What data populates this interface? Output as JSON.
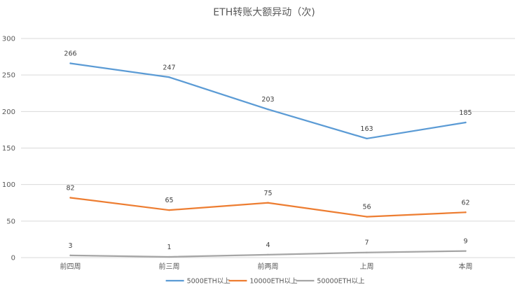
{
  "chart_data": {
    "type": "line",
    "title": "ETH转账大额异动（次)",
    "xlabel": "",
    "ylabel": "",
    "categories": [
      "前四周",
      "前三周",
      "前两周",
      "上周",
      "本周"
    ],
    "ylim": [
      0,
      300
    ],
    "yticks": [
      0,
      50,
      100,
      150,
      200,
      250,
      300
    ],
    "grid": true,
    "legend_position": "bottom",
    "series": [
      {
        "name": "5000ETH以上",
        "color": "#5b9bd5",
        "values": [
          266,
          247,
          203,
          163,
          185
        ]
      },
      {
        "name": "10000ETH以上",
        "color": "#ed7d31",
        "values": [
          82,
          65,
          75,
          56,
          62
        ]
      },
      {
        "name": "50000ETH以上",
        "color": "#a5a5a5",
        "values": [
          3,
          1,
          4,
          7,
          9
        ]
      }
    ]
  }
}
